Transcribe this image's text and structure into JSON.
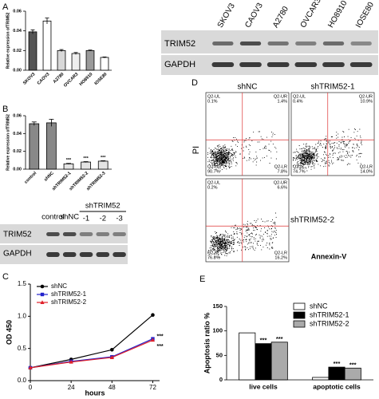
{
  "panel_labels": [
    "A",
    "B",
    "C",
    "D",
    "E"
  ],
  "blot_a": {
    "lanes": [
      "SKOV3",
      "CAOV3",
      "A2780",
      "OVCAR3",
      "HO8910",
      "IOSE80"
    ],
    "rows": [
      "TRIM52",
      "GAPDH"
    ]
  },
  "blot_b": {
    "lanes": [
      "control",
      "shNC"
    ],
    "group": "shTRIM52",
    "group_lanes": [
      "-1",
      "-2",
      "-3"
    ],
    "rows": [
      "TRIM52",
      "GAPDH"
    ]
  },
  "flow": {
    "ylabel": "PI",
    "xlabel": "Annexin-V",
    "plots": [
      {
        "name": "shNC",
        "quadrants": {
          "ul": [
            "Q2-UL",
            "0.1%"
          ],
          "ur": [
            "Q2-UR",
            "1.4%"
          ],
          "ll": [
            "Q2-LL",
            "90.7%"
          ],
          "lr": [
            "Q2-LR",
            "7.8%"
          ]
        }
      },
      {
        "name": "shTRIM52-1",
        "quadrants": {
          "ul": [
            "Q2-UL",
            "0.4%"
          ],
          "ur": [
            "Q2-UR",
            "10.9%"
          ],
          "ll": [
            "Q2-LL",
            "74.7%"
          ],
          "lr": [
            "Q2-LR",
            "14.0%"
          ]
        }
      },
      {
        "name": "shTRIM52-2",
        "quadrants": {
          "ul": [
            "Q2-UL",
            "0.2%"
          ],
          "ur": [
            "Q2-UR",
            "6.6%"
          ],
          "ll": [
            "Q2-LL",
            "76.8%"
          ],
          "lr": [
            "Q2-LR",
            "16.2%"
          ]
        }
      }
    ]
  },
  "chart_data": [
    {
      "type": "bar",
      "ylabel": "Relative expression ofTRIM52",
      "categories": [
        "SKOV3",
        "CAOV3",
        "A2780",
        "OVCAR3",
        "HO8910",
        "IOSE80"
      ],
      "values": [
        0.039,
        0.05,
        0.02,
        0.017,
        0.02,
        0.013
      ],
      "errors": [
        0.002,
        0.003,
        0.001,
        0.001,
        0.0005,
        0.0005
      ],
      "colors": [
        "#555555",
        "#ffffff",
        "#d8d8d8",
        "#eeeeee",
        "#9a9a9a",
        "#ffffff"
      ],
      "ylim": [
        0,
        0.06
      ],
      "yticks": [
        {
          "value": 0,
          "label": "0.00"
        },
        {
          "value": 0.02,
          "label": "0.02"
        },
        {
          "value": 0.04,
          "label": "0.04"
        },
        {
          "value": 0.06,
          "label": "0.06"
        }
      ]
    },
    {
      "type": "bar",
      "ylabel": "Relative expression ofTRIM52",
      "categories": [
        "control",
        "shNC",
        "shTRIM52-1",
        "shTRIM52-2",
        "shTRIM52-3"
      ],
      "values": [
        0.051,
        0.052,
        0.006,
        0.008,
        0.009
      ],
      "errors": [
        0.002,
        0.004,
        0.0005,
        0.0005,
        0.0005
      ],
      "colors": [
        "#888888",
        "#888888",
        "#e4e4e4",
        "#e4e4e4",
        "#e4e4e4"
      ],
      "annotations": [
        null,
        null,
        "***",
        "***",
        "***"
      ],
      "ylim": [
        0,
        0.06
      ],
      "yticks": [
        {
          "value": 0,
          "label": "0.00"
        },
        {
          "value": 0.02,
          "label": "0.02"
        },
        {
          "value": 0.04,
          "label": "0.04"
        },
        {
          "value": 0.06,
          "label": "0.06"
        }
      ]
    },
    {
      "type": "line",
      "xlabel": "hours",
      "ylabel": "OD 450",
      "x": [
        0,
        24,
        48,
        72
      ],
      "xlim": [
        0,
        76
      ],
      "xticks": [
        0,
        24,
        48,
        72
      ],
      "ylim": [
        0,
        1.5
      ],
      "yticks": [
        {
          "value": 0,
          "label": "0.0"
        },
        {
          "value": 0.5,
          "label": "0.5"
        },
        {
          "value": 1.0,
          "label": "1.0"
        },
        {
          "value": 1.5,
          "label": "1.5"
        }
      ],
      "series": [
        {
          "name": "shNC",
          "color": "#000000",
          "marker": "circle",
          "values": [
            0.2,
            0.33,
            0.48,
            1.02
          ]
        },
        {
          "name": "shTRIM52-1",
          "color": "#2222cc",
          "marker": "square",
          "values": [
            0.2,
            0.3,
            0.37,
            0.65
          ]
        },
        {
          "name": "shTRIM52-2",
          "color": "#e0202a",
          "marker": "triangle",
          "values": [
            0.2,
            0.29,
            0.36,
            0.63
          ]
        }
      ],
      "annotations": [
        "***",
        "***"
      ],
      "legend": "upper left"
    },
    {
      "type": "bar",
      "ylabel": "Apoptosis ratio %",
      "categories": [
        "live cells",
        "apoptotic cells"
      ],
      "ylim": [
        0,
        150
      ],
      "yticks": [
        0,
        50,
        100,
        150
      ],
      "legend": "upper right",
      "series": [
        {
          "name": "shNC",
          "color": "#ffffff",
          "values": [
            96,
            5
          ]
        },
        {
          "name": "shTRIM52-1",
          "color": "#000000",
          "values": [
            74,
            26
          ],
          "annotations": [
            "***",
            "***"
          ]
        },
        {
          "name": "shTRIM52-2",
          "color": "#aaaaaa",
          "values": [
            77,
            24
          ],
          "annotations": [
            "***",
            "***"
          ]
        }
      ]
    }
  ]
}
